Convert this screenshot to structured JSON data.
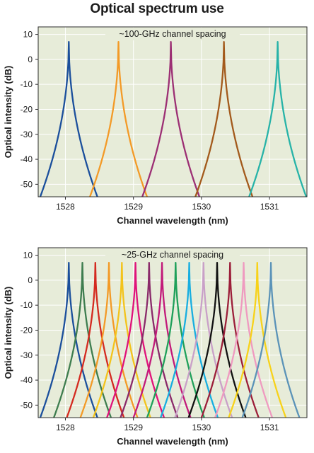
{
  "title": "Optical spectrum use",
  "chart_data": [
    {
      "type": "line",
      "title": "",
      "plot_label": "~100-GHz channel spacing",
      "xlabel": "Channel wavelength (nm)",
      "ylabel": "Optical intensity (dB)",
      "xlim": [
        1527.6,
        1531.55
      ],
      "ylim": [
        -55,
        13
      ],
      "x_ticks": [
        1528,
        1529,
        1530,
        1531
      ],
      "y_ticks": [
        10,
        0,
        -10,
        -20,
        -30,
        -40,
        -50
      ],
      "grid": true,
      "peak_value_db": 7,
      "floor_value_db": -55,
      "series": [
        {
          "center_nm": 1528.05,
          "color": "#1b4f9c"
        },
        {
          "center_nm": 1528.78,
          "color": "#f39a27"
        },
        {
          "center_nm": 1529.55,
          "color": "#9c2f74"
        },
        {
          "center_nm": 1530.33,
          "color": "#a35a1c"
        },
        {
          "center_nm": 1531.12,
          "color": "#27b3a8"
        }
      ]
    },
    {
      "type": "line",
      "title": "",
      "plot_label": "~25-GHz channel spacing",
      "xlabel": "Channel wavelength (nm)",
      "ylabel": "Optical intensity (dB)",
      "xlim": [
        1527.6,
        1531.55
      ],
      "ylim": [
        -55,
        13
      ],
      "x_ticks": [
        1528,
        1529,
        1530,
        1531
      ],
      "y_ticks": [
        10,
        0,
        -10,
        -20,
        -30,
        -40,
        -50
      ],
      "grid": true,
      "peak_value_db": 7,
      "floor_value_db": -55,
      "series": [
        {
          "center_nm": 1528.05,
          "color": "#1b4f9c"
        },
        {
          "center_nm": 1528.25,
          "color": "#3e7d4f"
        },
        {
          "center_nm": 1528.44,
          "color": "#d42a20"
        },
        {
          "center_nm": 1528.64,
          "color": "#f39a27"
        },
        {
          "center_nm": 1528.83,
          "color": "#f3c31b"
        },
        {
          "center_nm": 1529.03,
          "color": "#e0127a"
        },
        {
          "center_nm": 1529.23,
          "color": "#8a2a6a"
        },
        {
          "center_nm": 1529.42,
          "color": "#c21a7a"
        },
        {
          "center_nm": 1529.62,
          "color": "#1fa05a"
        },
        {
          "center_nm": 1529.82,
          "color": "#18aee0"
        },
        {
          "center_nm": 1530.03,
          "color": "#c9a0c8"
        },
        {
          "center_nm": 1530.23,
          "color": "#111111"
        },
        {
          "center_nm": 1530.42,
          "color": "#9c1f3a"
        },
        {
          "center_nm": 1530.62,
          "color": "#ef9ac0"
        },
        {
          "center_nm": 1530.82,
          "color": "#f7d21a"
        },
        {
          "center_nm": 1531.02,
          "color": "#5b93b8"
        }
      ]
    }
  ]
}
